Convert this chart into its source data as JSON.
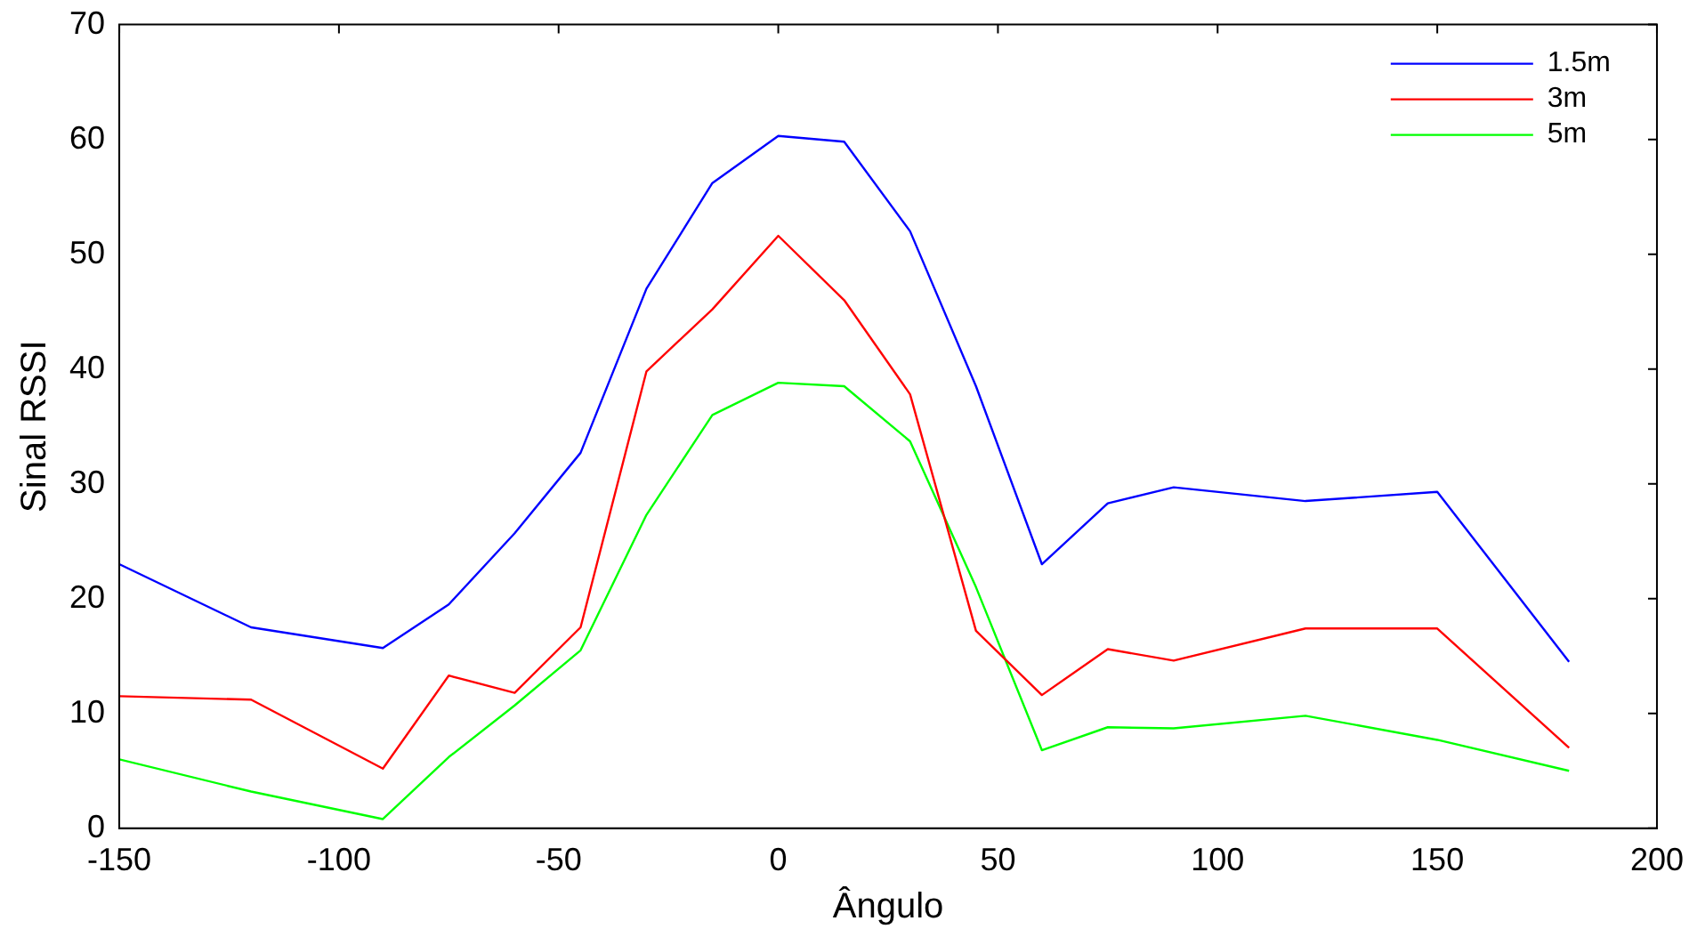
{
  "chart_data": {
    "type": "line",
    "xlabel": "Ângulo",
    "ylabel": "Sinal RSSI",
    "x": [
      -150,
      -120,
      -90,
      -75,
      -60,
      -45,
      -30,
      -15,
      0,
      15,
      30,
      45,
      60,
      75,
      90,
      120,
      150,
      180
    ],
    "series": [
      {
        "name": "1.5m",
        "color": "#0000ff",
        "values": [
          23,
          17.5,
          15.7,
          19.5,
          25.7,
          32.7,
          47,
          56.2,
          60.3,
          59.8,
          52,
          38.5,
          23,
          28.3,
          29.7,
          28.5,
          29.3,
          14.5
        ]
      },
      {
        "name": "3m",
        "color": "#ff0000",
        "values": [
          11.5,
          11.2,
          5.2,
          13.3,
          11.8,
          17.5,
          39.8,
          45.2,
          51.6,
          46,
          37.8,
          17.2,
          11.6,
          15.6,
          14.6,
          17.4,
          17.4,
          7
        ]
      },
      {
        "name": "5m",
        "color": "#00ff00",
        "values": [
          6,
          3.2,
          0.8,
          6.2,
          10.7,
          15.5,
          27.3,
          36,
          38.8,
          38.5,
          33.7,
          21,
          6.8,
          8.8,
          8.7,
          9.8,
          7.7,
          5
        ]
      }
    ],
    "xlim": [
      -150,
      200
    ],
    "xticks": [
      -150,
      -100,
      -50,
      0,
      50,
      100,
      150,
      200
    ],
    "ylim": [
      0,
      70
    ],
    "yticks": [
      0,
      10,
      20,
      30,
      40,
      50,
      60,
      70
    ],
    "grid": false,
    "legend": "top right",
    "marker": "none",
    "line_style": "solid"
  }
}
